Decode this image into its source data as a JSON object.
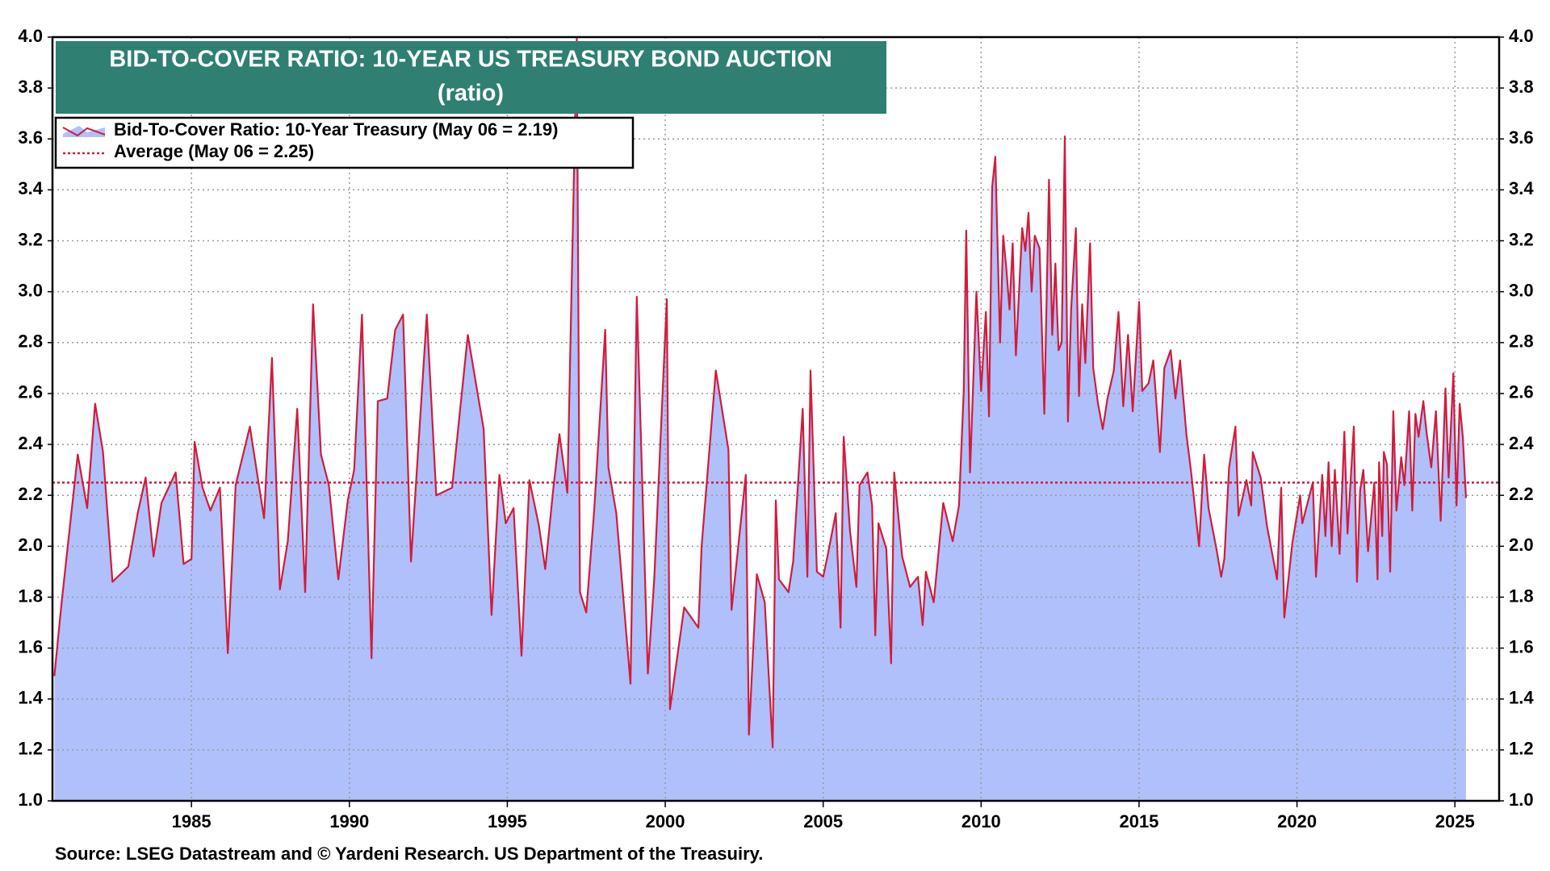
{
  "chart_data": {
    "type": "line",
    "title": "BID-TO-COVER RATIO: 10-YEAR US TREASURY BOND AUCTION",
    "subtitle": "(ratio)",
    "source": "Source: LSEG Datastream and © Yardeni Research. US  Department of the Treasuiry.",
    "xlim": [
      1980.6,
      2026.4
    ],
    "xticks": [
      1985,
      1990,
      1995,
      2000,
      2005,
      2010,
      2015,
      2020,
      2025
    ],
    "ylim": [
      1.0,
      4.0
    ],
    "yticks": [
      {
        "value": 1.0,
        "label": "1.0"
      },
      1.2,
      1.4,
      1.6,
      1.8,
      {
        "value": 2.0,
        "label": "2.0"
      },
      2.2,
      2.4,
      2.6,
      2.8,
      {
        "value": 3.0,
        "label": "3.0"
      },
      3.2,
      3.4,
      3.6,
      3.8,
      {
        "value": 4.0,
        "label": "4.0"
      }
    ],
    "grid": true,
    "legend": "top-left",
    "x": [
      1980.66,
      1980.9,
      1981.4,
      1981.7,
      1981.95,
      1982.2,
      1982.5,
      1983.0,
      1983.3,
      1983.55,
      1983.8,
      1984.05,
      1984.5,
      1984.75,
      1985.0,
      1985.1,
      1985.35,
      1985.6,
      1985.9,
      1986.15,
      1986.4,
      1986.85,
      1987.3,
      1987.55,
      1987.8,
      1988.05,
      1988.35,
      1988.6,
      1988.85,
      1989.1,
      1989.35,
      1989.65,
      1989.95,
      1990.15,
      1990.4,
      1990.7,
      1990.9,
      1991.2,
      1991.45,
      1991.7,
      1991.95,
      1992.45,
      1992.75,
      1993.25,
      1993.75,
      1994.25,
      1994.5,
      1994.75,
      1994.95,
      1995.2,
      1995.45,
      1995.7,
      1996.0,
      1996.2,
      1996.45,
      1996.65,
      1996.9,
      1997.2,
      1997.3,
      1997.5,
      1997.75,
      1998.1,
      1998.2,
      1998.45,
      1998.9,
      1999.1,
      1999.45,
      1999.65,
      2000.05,
      2000.15,
      2000.6,
      2001.05,
      2001.15,
      2001.6,
      2002.0,
      2002.1,
      2002.55,
      2002.65,
      2002.9,
      2003.15,
      2003.4,
      2003.5,
      2003.6,
      2003.9,
      2004.05,
      2004.35,
      2004.5,
      2004.6,
      2004.8,
      2005.0,
      2005.15,
      2005.4,
      2005.55,
      2005.65,
      2005.85,
      2006.05,
      2006.15,
      2006.4,
      2006.55,
      2006.65,
      2006.75,
      2007.0,
      2007.15,
      2007.25,
      2007.5,
      2007.75,
      2008.0,
      2008.15,
      2008.25,
      2008.5,
      2008.8,
      2009.1,
      2009.3,
      2009.45,
      2009.53,
      2009.65,
      2009.85,
      2010.0,
      2010.15,
      2010.25,
      2010.35,
      2010.45,
      2010.6,
      2010.7,
      2010.8,
      2010.9,
      2011.0,
      2011.1,
      2011.3,
      2011.4,
      2011.5,
      2011.6,
      2011.7,
      2011.85,
      2012.0,
      2012.15,
      2012.25,
      2012.35,
      2012.45,
      2012.55,
      2012.65,
      2012.75,
      2012.85,
      2013.0,
      2013.1,
      2013.2,
      2013.3,
      2013.45,
      2013.55,
      2013.7,
      2013.85,
      2014.0,
      2014.2,
      2014.35,
      2014.5,
      2014.65,
      2014.8,
      2015.0,
      2015.1,
      2015.3,
      2015.45,
      2015.66,
      2015.8,
      2016.0,
      2016.15,
      2016.3,
      2016.5,
      2016.65,
      2016.9,
      2017.06,
      2017.2,
      2017.45,
      2017.6,
      2017.7,
      2017.85,
      2018.05,
      2018.15,
      2018.4,
      2018.55,
      2018.6,
      2018.85,
      2019.05,
      2019.37,
      2019.5,
      2019.6,
      2019.85,
      2020.1,
      2020.17,
      2020.5,
      2020.6,
      2020.8,
      2020.9,
      2021.0,
      2021.1,
      2021.2,
      2021.35,
      2021.5,
      2021.6,
      2021.8,
      2021.9,
      2022.0,
      2022.1,
      2022.25,
      2022.45,
      2022.55,
      2022.6,
      2022.7,
      2022.75,
      2022.85,
      2022.95,
      2023.05,
      2023.15,
      2023.3,
      2023.4,
      2023.55,
      2023.65,
      2023.75,
      2023.85,
      2024.0,
      2024.1,
      2024.25,
      2024.4,
      2024.55,
      2024.7,
      2024.8,
      2024.95,
      2025.05,
      2025.15,
      2025.25,
      2025.35
    ],
    "series": [
      {
        "name": "Bid-To-Cover Ratio: 10-Year Treasury (May 06 = 2.19)",
        "color": "#d01c3c",
        "fill": "#b0c0fa",
        "values": [
          1.49,
          1.79,
          2.36,
          2.15,
          2.56,
          2.37,
          1.86,
          1.92,
          2.13,
          2.27,
          1.96,
          2.17,
          2.29,
          1.93,
          1.95,
          2.41,
          2.23,
          2.14,
          2.23,
          1.58,
          2.24,
          2.47,
          2.11,
          2.74,
          1.83,
          2.02,
          2.54,
          1.82,
          2.95,
          2.36,
          2.24,
          1.87,
          2.18,
          2.3,
          2.91,
          1.56,
          2.57,
          2.58,
          2.85,
          2.91,
          1.94,
          2.91,
          2.2,
          2.23,
          2.83,
          2.46,
          1.73,
          2.28,
          2.09,
          2.15,
          1.57,
          2.26,
          2.08,
          1.91,
          2.22,
          2.44,
          2.21,
          4.0,
          1.82,
          1.74,
          2.14,
          2.85,
          2.31,
          2.13,
          1.46,
          2.98,
          1.5,
          1.87,
          2.97,
          1.36,
          1.76,
          1.68,
          2.0,
          2.69,
          2.38,
          1.75,
          2.28,
          1.26,
          1.89,
          1.78,
          1.21,
          2.18,
          1.87,
          1.82,
          1.94,
          2.54,
          1.88,
          2.69,
          1.9,
          1.88,
          1.97,
          2.13,
          1.68,
          2.43,
          2.06,
          1.84,
          2.24,
          2.29,
          2.16,
          1.65,
          2.09,
          1.99,
          1.54,
          2.29,
          1.96,
          1.84,
          1.88,
          1.69,
          1.9,
          1.78,
          2.17,
          2.02,
          2.16,
          2.61,
          3.24,
          2.29,
          3.0,
          2.61,
          2.92,
          2.51,
          3.41,
          3.53,
          2.8,
          3.22,
          3.09,
          2.93,
          3.19,
          2.75,
          3.25,
          3.16,
          3.31,
          3.0,
          3.22,
          3.17,
          2.52,
          3.44,
          2.83,
          3.11,
          2.77,
          2.8,
          3.61,
          2.49,
          2.93,
          3.25,
          2.59,
          2.95,
          2.72,
          3.19,
          2.7,
          2.56,
          2.46,
          2.58,
          2.69,
          2.92,
          2.55,
          2.83,
          2.53,
          2.96,
          2.61,
          2.64,
          2.73,
          2.37,
          2.7,
          2.77,
          2.58,
          2.73,
          2.44,
          2.29,
          2.0,
          2.36,
          2.15,
          1.99,
          1.88,
          1.95,
          2.31,
          2.47,
          2.12,
          2.26,
          2.16,
          2.37,
          2.27,
          2.08,
          1.87,
          2.23,
          1.72,
          2.01,
          2.2,
          2.09,
          2.25,
          1.88,
          2.28,
          2.04,
          2.33,
          2.0,
          2.3,
          1.97,
          2.45,
          2.05,
          2.47,
          1.86,
          2.22,
          2.3,
          1.98,
          2.25,
          1.87,
          2.33,
          2.04,
          2.37,
          2.32,
          1.9,
          2.53,
          2.14,
          2.35,
          2.24,
          2.53,
          2.14,
          2.52,
          2.43,
          2.57,
          2.45,
          2.31,
          2.53,
          2.1,
          2.62,
          2.27,
          2.68,
          2.16,
          2.56,
          2.43,
          2.19
        ]
      }
    ],
    "average": {
      "name": "Average (May 06 = 2.25)",
      "value": 2.25,
      "color": "#d01c3c"
    },
    "title_color": "#2f7f73"
  }
}
